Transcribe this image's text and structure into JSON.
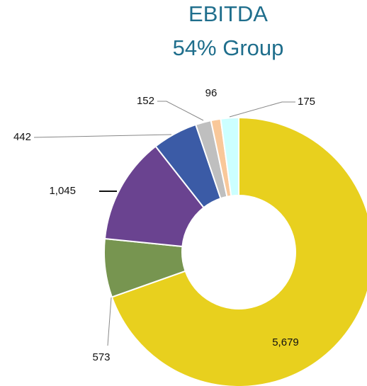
{
  "chart_data": {
    "type": "donut",
    "title": "EBITDA",
    "subtitle": "54% Group",
    "values": [
      5679,
      573,
      1045,
      442,
      152,
      96,
      175
    ],
    "value_labels": [
      "5,679",
      "573",
      "1,045",
      "442",
      "152",
      "96",
      "175"
    ],
    "colors": [
      "#E8D01E",
      "#779550",
      "#6A4390",
      "#3B5BA6",
      "#BFBFBF",
      "#F9C89A",
      "#CCFFFF"
    ]
  }
}
